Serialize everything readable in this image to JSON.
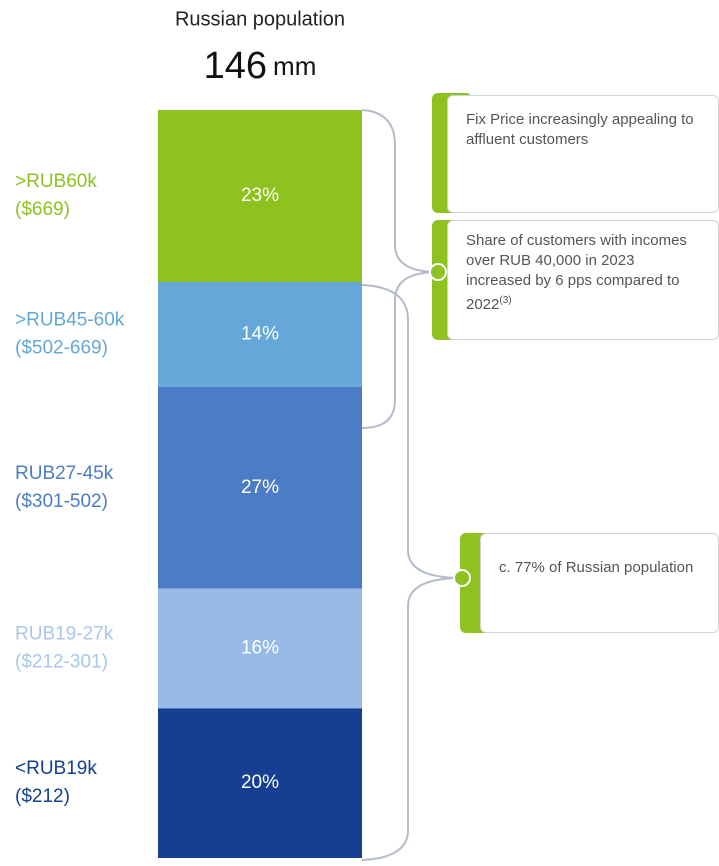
{
  "chart_data": {
    "type": "bar",
    "stacked": true,
    "title": "Russian population",
    "total": "146",
    "total_unit": "mm",
    "categories": [
      [
        ">RUB60k",
        "($669)"
      ],
      [
        ">RUB45-60k",
        "($502-669)"
      ],
      [
        "RUB27-45k",
        "($301-502)"
      ],
      [
        "RUB19-27k",
        "($212-301)"
      ],
      [
        "<RUB19k",
        "($212)"
      ]
    ],
    "values": [
      23,
      14,
      27,
      16,
      20
    ],
    "value_labels": [
      "23%",
      "14%",
      "27%",
      "16%",
      "20%"
    ],
    "colors": [
      "#8dc21f",
      "#65a7d8",
      "#4d7cc7",
      "#97bbe6",
      "#153f91"
    ],
    "label_colors": [
      "#8dc21f",
      "#65a7d8",
      "#4d7cc7",
      "#a9c6ea",
      "#153f91"
    ],
    "ylim": [
      0,
      100
    ],
    "annotations": [
      {
        "text": "Fix Price increasingly appealing to affluent customers"
      },
      {
        "text": "Share of customers with incomes over RUB 40,000 in 2023 increased by 6 pps compared to 2022",
        "superscript": "(3)"
      },
      {
        "text": "c. 77% of Russian population"
      }
    ]
  }
}
